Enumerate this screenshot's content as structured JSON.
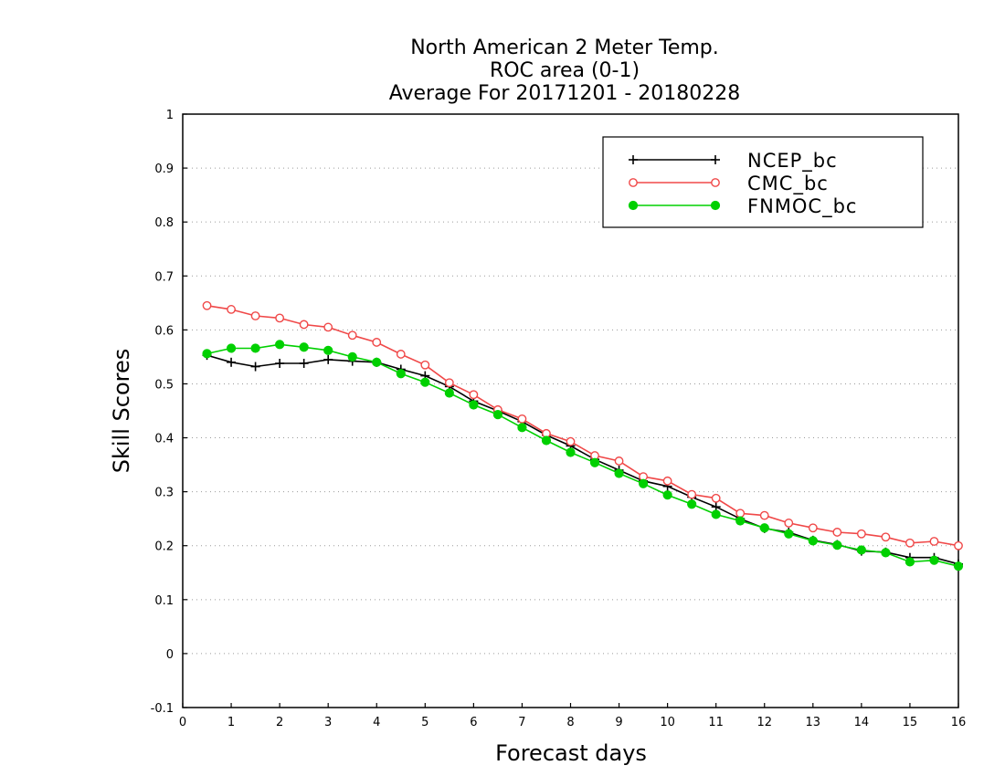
{
  "chart_data": {
    "type": "line",
    "title_lines": [
      "North American 2 Meter Temp.",
      "ROC area (0-1)",
      "Average For 20171201 - 20180228"
    ],
    "xlabel": "Forecast days",
    "ylabel": "Skill Scores",
    "xlim": [
      0,
      16
    ],
    "ylim": [
      -0.1,
      1
    ],
    "xticks": [
      "0",
      "1",
      "2",
      "3",
      "4",
      "5",
      "6",
      "7",
      "8",
      "9",
      "10",
      "11",
      "12",
      "13",
      "14",
      "15",
      "16"
    ],
    "yticks": [
      "-0.1",
      "0",
      "0.1",
      "0.2",
      "0.3",
      "0.4",
      "0.5",
      "0.6",
      "0.7",
      "0.8",
      "0.9",
      "1"
    ],
    "grid": "horizontal-dotted",
    "legend_position": "top-right",
    "x": [
      0.5,
      1,
      1.5,
      2,
      2.5,
      3,
      3.5,
      4,
      4.5,
      5,
      5.5,
      6,
      6.5,
      7,
      7.5,
      8,
      8.5,
      9,
      9.5,
      10,
      10.5,
      11,
      11.5,
      12,
      12.5,
      13,
      13.5,
      14,
      14.5,
      15,
      15.5,
      16
    ],
    "series": [
      {
        "name": "NCEP_bc",
        "color": "#000000",
        "marker": "plus",
        "values": [
          0.553,
          0.54,
          0.532,
          0.538,
          0.538,
          0.545,
          0.542,
          0.54,
          0.527,
          0.515,
          0.495,
          0.468,
          0.45,
          0.43,
          0.405,
          0.385,
          0.36,
          0.34,
          0.32,
          0.31,
          0.29,
          0.272,
          0.25,
          0.232,
          0.225,
          0.21,
          0.202,
          0.19,
          0.188,
          0.178,
          0.178,
          0.166
        ]
      },
      {
        "name": "CMC_bc",
        "color": "#f04848",
        "marker": "open-circle",
        "values": [
          0.645,
          0.638,
          0.626,
          0.622,
          0.61,
          0.605,
          0.59,
          0.577,
          0.555,
          0.535,
          0.502,
          0.48,
          0.452,
          0.435,
          0.408,
          0.393,
          0.367,
          0.357,
          0.328,
          0.32,
          0.295,
          0.288,
          0.26,
          0.256,
          0.242,
          0.233,
          0.225,
          0.222,
          0.216,
          0.205,
          0.208,
          0.2
        ]
      },
      {
        "name": "FNMOC_bc",
        "color": "#00d000",
        "marker": "filled-circle",
        "values": [
          0.556,
          0.566,
          0.566,
          0.573,
          0.568,
          0.562,
          0.55,
          0.54,
          0.519,
          0.503,
          0.483,
          0.461,
          0.443,
          0.419,
          0.395,
          0.373,
          0.354,
          0.334,
          0.315,
          0.294,
          0.277,
          0.258,
          0.246,
          0.233,
          0.222,
          0.209,
          0.201,
          0.192,
          0.187,
          0.17,
          0.173,
          0.162
        ]
      }
    ]
  }
}
